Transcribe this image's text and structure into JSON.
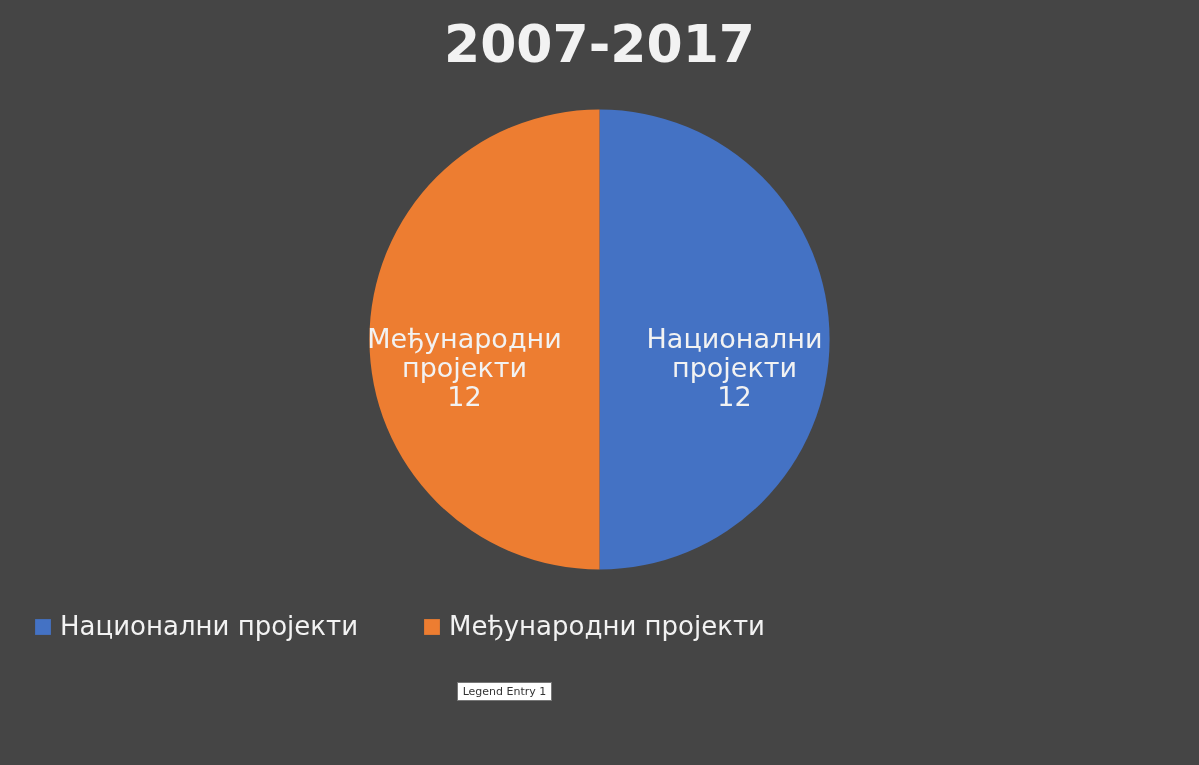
{
  "chart_data": {
    "type": "pie",
    "title": "2007-2017",
    "categories": [
      "Национални пројекти",
      "Међународни пројекти"
    ],
    "values": [
      12,
      12
    ],
    "colors": [
      "#4472c4",
      "#ed7d31"
    ],
    "data_labels": true,
    "legend": "bottom",
    "annotations": [
      "Legend Entry 1"
    ]
  }
}
